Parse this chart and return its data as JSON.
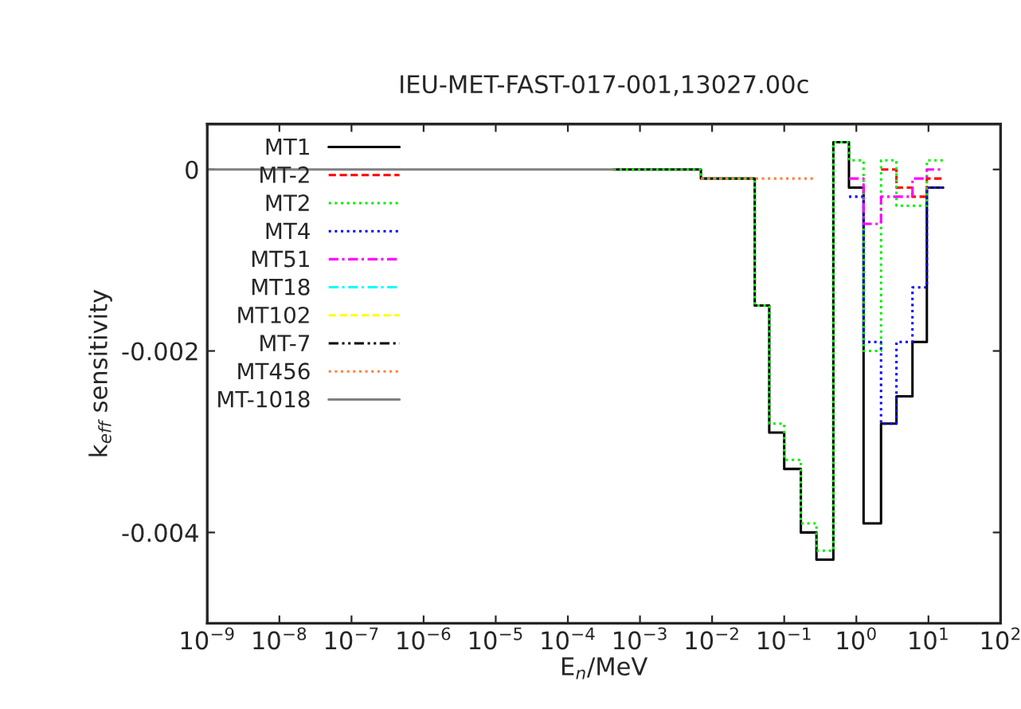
{
  "chart_data": {
    "type": "step",
    "title": "IEU-MET-FAST-017-001,13027.00c",
    "xlabel": "E$_{n}$/MeV",
    "ylabel": "k$_{eff}$ sensitivity",
    "log": "x",
    "grid": false,
    "legend": "top left",
    "x": [
      0.00043,
      0.0007,
      0.002,
      0.0032,
      0.007,
      0.0135,
      0.022,
      0.039,
      0.062,
      0.1,
      0.17,
      0.28,
      0.48,
      0.79,
      1.26,
      2.2,
      3.6,
      6.0,
      9.5,
      16
    ],
    "xlim": [
      1e-09,
      100
    ],
    "xticks": [
      {
        "value": 1e-09,
        "label": "10$^{−9}$"
      },
      {
        "value": 1e-08,
        "label": "10$^{−8}$"
      },
      {
        "value": 1e-07,
        "label": "10$^{−7}$"
      },
      {
        "value": 1e-06,
        "label": "10$^{−6}$"
      },
      {
        "value": 1e-05,
        "label": "10$^{−5}$"
      },
      {
        "value": 0.0001,
        "label": "10$^{−4}$"
      },
      {
        "value": 0.001,
        "label": "10$^{−3}$"
      },
      {
        "value": 0.01,
        "label": "10$^{−2}$"
      },
      {
        "value": 0.1,
        "label": "10$^{−1}$"
      },
      {
        "value": 1,
        "label": "10$^{0}$"
      },
      {
        "value": 10,
        "label": "10$^{1}$"
      },
      {
        "value": 100,
        "label": "10$^{2}$"
      }
    ],
    "ylim": [
      -0.005,
      0.0005
    ],
    "yticks": [
      -0.004,
      -0.002,
      0
    ],
    "series": [
      {
        "name": "MT1",
        "color": "#000000",
        "line_style": "solid",
        "values": [
          0,
          0,
          0,
          0,
          -0.0001,
          -0.0001,
          -0.0001,
          -0.0015,
          -0.0029,
          -0.0033,
          -0.004,
          -0.0043,
          0.0003,
          -0.0002,
          -0.0039,
          -0.0028,
          -0.0025,
          -0.0019,
          -0.0002,
          -0.0002
        ]
      },
      {
        "name": "MT-2",
        "color": "#ff0000",
        "line_style": "dashed",
        "x": [
          2.2,
          3.6,
          6.0,
          9.5,
          16
        ],
        "values": [
          0,
          -0.0002,
          -0.0003,
          -0.0001,
          -0.0001
        ]
      },
      {
        "name": "MT2",
        "color": "#00ee00",
        "line_style": "dotted",
        "values": [
          0,
          0,
          0,
          0,
          -0.0001,
          -0.0001,
          -0.0001,
          -0.0015,
          -0.0028,
          -0.0032,
          -0.0039,
          -0.0042,
          0.0003,
          0.0001,
          -0.002,
          0.0001,
          -0.0004,
          -0.0004,
          0.0001,
          0.0001
        ]
      },
      {
        "name": "MT4",
        "color": "#0000ff",
        "line_style": "dotted",
        "x": [
          0.79,
          1.26,
          2.2,
          3.6,
          6.0,
          9.5,
          16
        ],
        "values": [
          -0.0003,
          -0.0019,
          -0.0028,
          -0.0019,
          -0.0013,
          -0.0002,
          -0.0002
        ]
      },
      {
        "name": "MT51",
        "color": "#ff00ff",
        "line_style": "dashdot",
        "x": [
          0.79,
          1.26,
          2.2,
          3.6,
          6.0,
          9.5,
          16
        ],
        "values": [
          -0.0001,
          -0.0006,
          -0.0003,
          -0.0003,
          -0.0001,
          0,
          0
        ]
      },
      {
        "name": "MT18",
        "color": "#00ffff",
        "line_style": "dashdot",
        "values": [
          null,
          null,
          null,
          null,
          null,
          null,
          null,
          null,
          null,
          null,
          null,
          null,
          null,
          null,
          null,
          null,
          null,
          null,
          null,
          null
        ]
      },
      {
        "name": "MT102",
        "color": "#ffff00",
        "line_style": "dashed",
        "values": [
          null,
          null,
          null,
          null,
          null,
          null,
          null,
          null,
          null,
          null,
          null,
          null,
          null,
          null,
          null,
          null,
          null,
          null,
          null,
          null
        ]
      },
      {
        "name": "MT-7",
        "color": "#000000",
        "line_style": "dashdotdot",
        "values": [
          null,
          null,
          null,
          null,
          null,
          null,
          null,
          null,
          null,
          null,
          null,
          null,
          null,
          null,
          null,
          null,
          null,
          null,
          null,
          null
        ]
      },
      {
        "name": "MT456",
        "color": "#ff7f3f",
        "line_style": "dotted",
        "x": [
          0.007,
          0.0135,
          0.022,
          0.039,
          0.062,
          0.1,
          0.17,
          0.28
        ],
        "values": [
          -0.0001,
          -0.0001,
          -0.0001,
          -0.0001,
          -0.0001,
          -0.0001,
          -0.0001,
          -0.0001
        ]
      },
      {
        "name": "MT-1018",
        "color": "#808080",
        "line_style": "solid",
        "x": [
          1e-09,
          0.00043
        ],
        "values": [
          0,
          0
        ]
      }
    ]
  }
}
